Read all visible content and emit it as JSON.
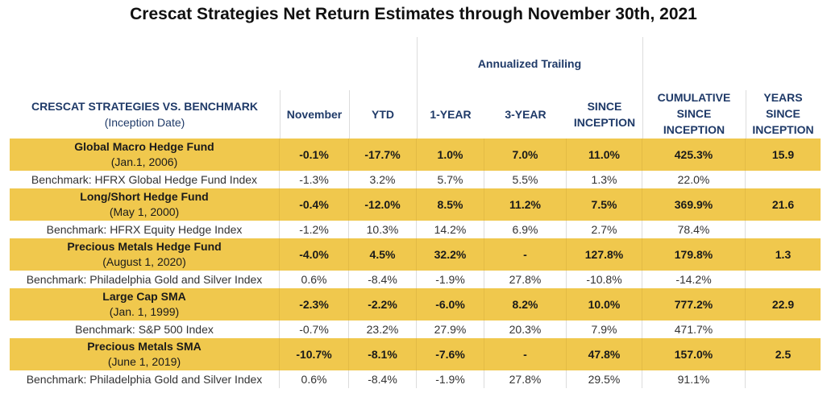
{
  "title": "Crescat Strategies Net Return Estimates through November 30th, 2021",
  "header": {
    "strategy": "CRESCAT STRATEGIES VS. BENCHMARK",
    "strategy_sub": "(Inception Date)",
    "november": "November",
    "ytd": "YTD",
    "annualized_group": "Annualized Trailing",
    "one_year": "1-YEAR",
    "three_year": "3-YEAR",
    "since_inception": "SINCE INCEPTION",
    "cumulative": "CUMULATIVE SINCE INCEPTION",
    "years": "YEARS SINCE INCEPTION"
  },
  "colors": {
    "fund_row": "#f0c84d",
    "header_text": "#1f3a68"
  },
  "rows": [
    {
      "name": "Global Macro Hedge Fund",
      "date": "(Jan.1, 2006)",
      "values": [
        "-0.1%",
        "-17.7%",
        "1.0%",
        "7.0%",
        "11.0%",
        "425.3%",
        "15.9"
      ],
      "benchmark": {
        "name": "Benchmark: HFRX Global Hedge Fund Index",
        "values": [
          "-1.3%",
          "3.2%",
          "5.7%",
          "5.5%",
          "1.3%",
          "22.0%",
          ""
        ]
      }
    },
    {
      "name": "Long/Short Hedge Fund",
      "date": "(May 1, 2000)",
      "values": [
        "-0.4%",
        "-12.0%",
        "8.5%",
        "11.2%",
        "7.5%",
        "369.9%",
        "21.6"
      ],
      "benchmark": {
        "name": "Benchmark: HFRX Equity Hedge Index",
        "values": [
          "-1.2%",
          "10.3%",
          "14.2%",
          "6.9%",
          "2.7%",
          "78.4%",
          ""
        ]
      }
    },
    {
      "name": "Precious Metals Hedge Fund",
      "date": "(August 1, 2020)",
      "values": [
        "-4.0%",
        "4.5%",
        "32.2%",
        "-",
        "127.8%",
        "179.8%",
        "1.3"
      ],
      "benchmark": {
        "name": "Benchmark: Philadelphia Gold and Silver Index",
        "values": [
          "0.6%",
          "-8.4%",
          "-1.9%",
          "27.8%",
          "-10.8%",
          "-14.2%",
          ""
        ]
      }
    },
    {
      "name": "Large Cap SMA",
      "date": "(Jan. 1, 1999)",
      "values": [
        "-2.3%",
        "-2.2%",
        "-6.0%",
        "8.2%",
        "10.0%",
        "777.2%",
        "22.9"
      ],
      "benchmark": {
        "name": "Benchmark: S&P 500 Index",
        "values": [
          "-0.7%",
          "23.2%",
          "27.9%",
          "20.3%",
          "7.9%",
          "471.7%",
          ""
        ]
      }
    },
    {
      "name": "Precious Metals SMA",
      "date": "(June 1, 2019)",
      "values": [
        "-10.7%",
        "-8.1%",
        "-7.6%",
        "-",
        "47.8%",
        "157.0%",
        "2.5"
      ],
      "benchmark": {
        "name": "Benchmark: Philadelphia Gold and Silver Index",
        "values": [
          "0.6%",
          "-8.4%",
          "-1.9%",
          "27.8%",
          "29.5%",
          "91.1%",
          ""
        ]
      }
    }
  ]
}
